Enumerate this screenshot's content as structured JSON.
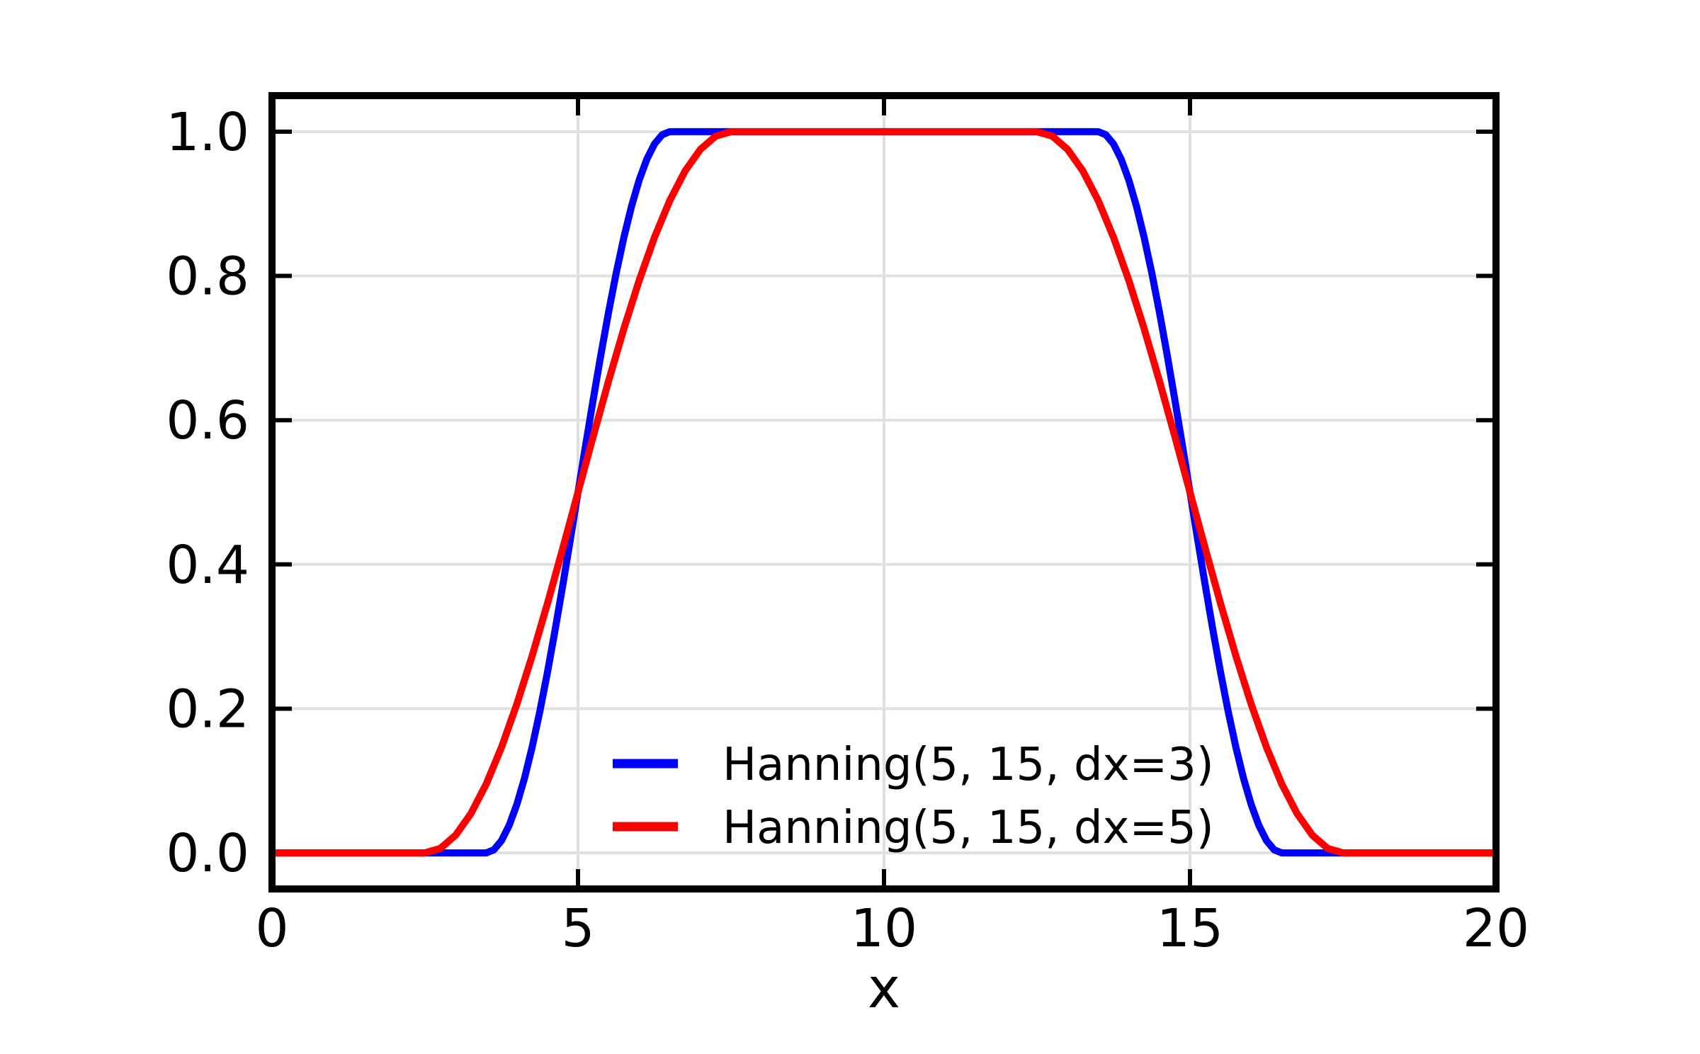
{
  "figure": {
    "background": "#ffffff",
    "text_color": "#000000"
  },
  "chart_data": {
    "type": "line",
    "title": "",
    "xlabel": "x",
    "ylabel": "",
    "xlim": [
      0,
      20
    ],
    "ylim": [
      -0.05,
      1.05
    ],
    "x_ticks": [
      0,
      5,
      10,
      15,
      20
    ],
    "x_tick_labels": [
      "0",
      "5",
      "10",
      "15",
      "20"
    ],
    "y_ticks": [
      0.0,
      0.2,
      0.4,
      0.6,
      0.8,
      1.0
    ],
    "y_tick_labels": [
      "0.0",
      "0.2",
      "0.4",
      "0.6",
      "0.8",
      "1.0"
    ],
    "grid": true,
    "grid_color": "#e0e0e0",
    "spine_color": "#000000",
    "tick_color": "#000000",
    "legend": {
      "position": "lower center",
      "frame": false,
      "entries": [
        "Hanning(5, 15, dx=3)",
        "Hanning(5, 15, dx=5)"
      ]
    },
    "series": [
      {
        "name": "Hanning(5, 15, dx=3)",
        "color": "#0000ff",
        "params": {
          "x1": 5,
          "x2": 15,
          "dx": 3
        },
        "points": [
          [
            0,
            0
          ],
          [
            3.5,
            0
          ],
          [
            3.625,
            0.0043
          ],
          [
            3.75,
            0.017
          ],
          [
            3.875,
            0.0381
          ],
          [
            4,
            0.067
          ],
          [
            4.125,
            0.1033
          ],
          [
            4.25,
            0.1464
          ],
          [
            4.375,
            0.1956
          ],
          [
            4.5,
            0.25
          ],
          [
            4.625,
            0.3087
          ],
          [
            4.75,
            0.3706
          ],
          [
            4.875,
            0.4347
          ],
          [
            5,
            0.5
          ],
          [
            5.125,
            0.5653
          ],
          [
            5.25,
            0.6294
          ],
          [
            5.375,
            0.6913
          ],
          [
            5.5,
            0.75
          ],
          [
            5.625,
            0.8044
          ],
          [
            5.75,
            0.8536
          ],
          [
            5.875,
            0.8967
          ],
          [
            6,
            0.933
          ],
          [
            6.125,
            0.9619
          ],
          [
            6.25,
            0.983
          ],
          [
            6.375,
            0.9957
          ],
          [
            6.5,
            1
          ],
          [
            13.5,
            1
          ],
          [
            13.625,
            0.9957
          ],
          [
            13.75,
            0.983
          ],
          [
            13.875,
            0.9619
          ],
          [
            14,
            0.933
          ],
          [
            14.125,
            0.8967
          ],
          [
            14.25,
            0.8536
          ],
          [
            14.375,
            0.8044
          ],
          [
            14.5,
            0.75
          ],
          [
            14.625,
            0.6913
          ],
          [
            14.75,
            0.6294
          ],
          [
            14.875,
            0.5653
          ],
          [
            15,
            0.5
          ],
          [
            15.125,
            0.4347
          ],
          [
            15.25,
            0.3706
          ],
          [
            15.375,
            0.3087
          ],
          [
            15.5,
            0.25
          ],
          [
            15.625,
            0.1956
          ],
          [
            15.75,
            0.1464
          ],
          [
            15.875,
            0.1033
          ],
          [
            16,
            0.067
          ],
          [
            16.125,
            0.0381
          ],
          [
            16.25,
            0.017
          ],
          [
            16.375,
            0.0043
          ],
          [
            16.5,
            0
          ],
          [
            20,
            0
          ]
        ]
      },
      {
        "name": "Hanning(5, 15, dx=5)",
        "color": "#ff0000",
        "params": {
          "x1": 5,
          "x2": 15,
          "dx": 5
        },
        "points": [
          [
            0,
            0
          ],
          [
            2.5,
            0
          ],
          [
            2.75,
            0.0062
          ],
          [
            3,
            0.0245
          ],
          [
            3.25,
            0.0545
          ],
          [
            3.5,
            0.0955
          ],
          [
            3.75,
            0.1464
          ],
          [
            4,
            0.2061
          ],
          [
            4.25,
            0.273
          ],
          [
            4.5,
            0.3455
          ],
          [
            4.75,
            0.4218
          ],
          [
            5,
            0.5
          ],
          [
            5.25,
            0.5782
          ],
          [
            5.5,
            0.6545
          ],
          [
            5.75,
            0.727
          ],
          [
            6,
            0.7939
          ],
          [
            6.25,
            0.8536
          ],
          [
            6.5,
            0.9045
          ],
          [
            6.75,
            0.9455
          ],
          [
            7,
            0.9755
          ],
          [
            7.25,
            0.9938
          ],
          [
            7.5,
            1
          ],
          [
            12.5,
            1
          ],
          [
            12.75,
            0.9938
          ],
          [
            13,
            0.9755
          ],
          [
            13.25,
            0.9455
          ],
          [
            13.5,
            0.9045
          ],
          [
            13.75,
            0.8536
          ],
          [
            14,
            0.7939
          ],
          [
            14.25,
            0.727
          ],
          [
            14.5,
            0.6545
          ],
          [
            14.75,
            0.5782
          ],
          [
            15,
            0.5
          ],
          [
            15.25,
            0.4218
          ],
          [
            15.5,
            0.3455
          ],
          [
            15.75,
            0.273
          ],
          [
            16,
            0.2061
          ],
          [
            16.25,
            0.1464
          ],
          [
            16.5,
            0.0955
          ],
          [
            16.75,
            0.0545
          ],
          [
            17,
            0.0245
          ],
          [
            17.25,
            0.0062
          ],
          [
            17.5,
            0
          ],
          [
            20,
            0
          ]
        ]
      }
    ]
  }
}
